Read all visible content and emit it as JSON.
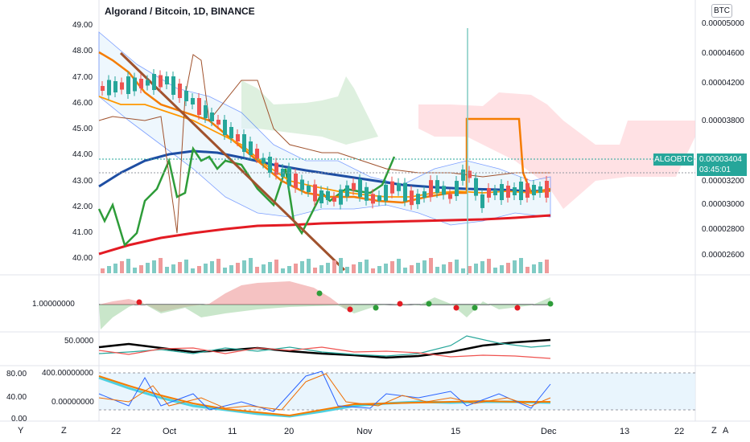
{
  "header": {
    "title": "Algorand / Bitcoin, 1D, BINANCE",
    "currency": "BTC"
  },
  "left_axis": [
    "49.00",
    "48.00",
    "47.00",
    "46.00",
    "45.00",
    "44.00",
    "43.00",
    "42.00",
    "41.00",
    "40.00"
  ],
  "right_axis": [
    "0.00005000",
    "0.00004600",
    "0.00004200",
    "0.00003800",
    "0.00003200",
    "0.00003000",
    "0.00002800",
    "0.00002600"
  ],
  "price_tag": {
    "symbol": "ALGOBTC",
    "price": "0.00003404",
    "countdown": "03:45:01"
  },
  "pane2_axis": "1.00000000",
  "pane3_axis": "50.0000",
  "pane4_axis": {
    "left": [
      "80.00",
      "40.00",
      "0.00"
    ],
    "right": [
      "400.00000000",
      "0.00000000"
    ]
  },
  "time_axis": [
    "22",
    "Oct",
    "11",
    "20",
    "Nov",
    "15",
    "Dec",
    "13",
    "22"
  ],
  "bottom_bar": {
    "left": "Y",
    "z_left": "Z",
    "z_right": "Z",
    "a": "A"
  },
  "colors": {
    "bull": "#26a69a",
    "bear": "#ef5350",
    "accent": "#26a69a"
  }
}
